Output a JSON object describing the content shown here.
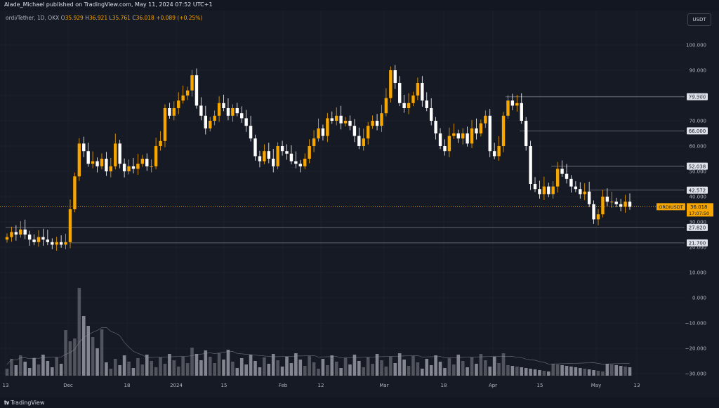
{
  "header": {
    "publisher": "Alade_Michael published on TradingView.com, May 11, 2024 07:52 UTC+1"
  },
  "symbol": {
    "name": "ordi/Tether, 1D, OKX",
    "open_label": "O",
    "open": "35.929",
    "high_label": "H",
    "high": "36.921",
    "low_label": "L",
    "low": "35.761",
    "close_label": "C",
    "close": "36.018",
    "change": "+0.089 (+0.25%)"
  },
  "currency": "USDT",
  "footer": {
    "brand": "TradingView"
  },
  "colors": {
    "up": "#f7a600",
    "down": "#ffffff",
    "background": "#161a25",
    "grid": "#22262f",
    "level_line": "#787b86",
    "price_tag": "#f7a600"
  },
  "chart_data": {
    "type": "candlestick",
    "y_axis_ticks": [
      "100.000",
      "90.000",
      "80.000",
      "70.000",
      "60.000",
      "50.000",
      "40.000",
      "30.000",
      "20.000",
      "10.000",
      "0.000",
      "−10.000",
      "−20.000",
      "−30.000"
    ],
    "y_range": [
      -32,
      110
    ],
    "x_axis_ticks": [
      "13",
      "Dec",
      "18",
      "2024",
      "15",
      "Feb",
      "12",
      "Mar",
      "18",
      "Apr",
      "15",
      "May",
      "13"
    ],
    "levels": [
      {
        "value": 79.5,
        "label": "79.500"
      },
      {
        "value": 66.0,
        "label": "66.000"
      },
      {
        "value": 52.038,
        "label": "52.038"
      },
      {
        "value": 42.572,
        "label": "42.572"
      },
      {
        "value": 27.82,
        "label": "27.820"
      },
      {
        "value": 21.7,
        "label": "21.700"
      }
    ],
    "current_price": {
      "symbol": "ORDIUSDT",
      "value": "36.018",
      "countdown": "17:07:50",
      "y": 36.018
    },
    "candle_closes": [
      24,
      26,
      25,
      27,
      25,
      23,
      22,
      24,
      23,
      22,
      21,
      22,
      21,
      22,
      35,
      48,
      61,
      58,
      53,
      54,
      52,
      55,
      50,
      52,
      61,
      53,
      50,
      52,
      51,
      53,
      55,
      52,
      52,
      60,
      62,
      75,
      72,
      75,
      78,
      80,
      82,
      88,
      76,
      72,
      67,
      70,
      72,
      77,
      75,
      72,
      75,
      73,
      71,
      68,
      63,
      56,
      54,
      58,
      55,
      52,
      60,
      58,
      57,
      54,
      53,
      52,
      55,
      60,
      63,
      67,
      64,
      71,
      70,
      72,
      69,
      70,
      68,
      64,
      60,
      63,
      68,
      70,
      68,
      73,
      79,
      90,
      85,
      77,
      75,
      77,
      80,
      85,
      78,
      75,
      70,
      65,
      60,
      58,
      64,
      65,
      63,
      65,
      61,
      67,
      65,
      69,
      72,
      58,
      56,
      60,
      72,
      78,
      76,
      77,
      70,
      60,
      45,
      43,
      41,
      44,
      41,
      44,
      51,
      49,
      47,
      44,
      43,
      41,
      42,
      37,
      31,
      33,
      40,
      38,
      38,
      37,
      36,
      38,
      36
    ]
  }
}
